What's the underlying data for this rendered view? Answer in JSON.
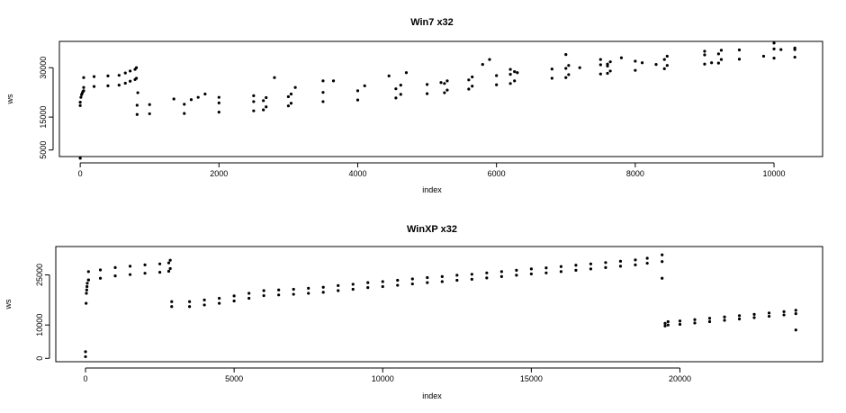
{
  "chart_data": [
    {
      "type": "scatter",
      "title": "Win7 x32",
      "xlabel": "index",
      "ylabel": "ws",
      "xlim": [
        -300,
        10700
      ],
      "ylim": [
        3000,
        38000
      ],
      "xticks": [
        0,
        2000,
        4000,
        6000,
        8000,
        10000
      ],
      "yticks": [
        5000,
        15000,
        30000
      ],
      "series": [
        {
          "points": [
            [
              0,
              2500
            ],
            [
              0,
              18500
            ],
            [
              0,
              19500
            ],
            [
              10,
              21000
            ],
            [
              20,
              21800
            ],
            [
              30,
              22300
            ],
            [
              40,
              22800
            ],
            [
              50,
              23000
            ],
            [
              50,
              27000
            ],
            [
              200,
              27300
            ],
            [
              400,
              27500
            ],
            [
              560,
              27700
            ],
            [
              650,
              28400
            ],
            [
              720,
              29000
            ],
            [
              790,
              29500
            ],
            [
              810,
              30000
            ],
            [
              50,
              24000
            ],
            [
              200,
              24300
            ],
            [
              400,
              24500
            ],
            [
              560,
              24700
            ],
            [
              650,
              25300
            ],
            [
              720,
              25900
            ],
            [
              790,
              26400
            ],
            [
              810,
              26800
            ],
            [
              830,
              22400
            ],
            [
              820,
              18600
            ],
            [
              1000,
              18800
            ],
            [
              1500,
              18900
            ],
            [
              2000,
              19300
            ],
            [
              2500,
              19700
            ],
            [
              2640,
              20000
            ],
            [
              2680,
              20900
            ],
            [
              3000,
              21200
            ],
            [
              3040,
              22000
            ],
            [
              3500,
              22500
            ],
            [
              4000,
              23000
            ],
            [
              4550,
              23600
            ],
            [
              4620,
              24700
            ],
            [
              5000,
              24900
            ],
            [
              5250,
              25200
            ],
            [
              5290,
              26000
            ],
            [
              5600,
              26300
            ],
            [
              5650,
              27200
            ],
            [
              6000,
              27600
            ],
            [
              6200,
              28000
            ],
            [
              6260,
              28800
            ],
            [
              6800,
              29600
            ],
            [
              7000,
              29800
            ],
            [
              7040,
              30700
            ],
            [
              7500,
              30900
            ],
            [
              7600,
              31100
            ],
            [
              7640,
              31800
            ],
            [
              8000,
              32000
            ],
            [
              8420,
              32500
            ],
            [
              8460,
              33500
            ],
            [
              9000,
              33900
            ],
            [
              9200,
              34200
            ],
            [
              9240,
              35300
            ],
            [
              9500,
              35400
            ],
            [
              10000,
              35700
            ],
            [
              10300,
              36000
            ],
            [
              820,
              15800
            ],
            [
              1000,
              16000
            ],
            [
              1500,
              16100
            ],
            [
              2000,
              16500
            ],
            [
              2500,
              16900
            ],
            [
              2640,
              17200
            ],
            [
              2680,
              18100
            ],
            [
              3000,
              18400
            ],
            [
              3040,
              19200
            ],
            [
              3500,
              19700
            ],
            [
              4000,
              20200
            ],
            [
              4550,
              20800
            ],
            [
              4620,
              21900
            ],
            [
              5000,
              22100
            ],
            [
              5250,
              22400
            ],
            [
              5290,
              23200
            ],
            [
              5600,
              23500
            ],
            [
              5650,
              24400
            ],
            [
              6000,
              24800
            ],
            [
              6200,
              25200
            ],
            [
              6260,
              26000
            ],
            [
              6800,
              26800
            ],
            [
              7000,
              27000
            ],
            [
              7040,
              27900
            ],
            [
              7500,
              28100
            ],
            [
              7600,
              28300
            ],
            [
              7640,
              29000
            ],
            [
              8000,
              29200
            ],
            [
              8420,
              29700
            ],
            [
              8460,
              30700
            ],
            [
              9000,
              31100
            ],
            [
              9200,
              31400
            ],
            [
              9240,
              32500
            ],
            [
              9500,
              32600
            ],
            [
              10000,
              32900
            ],
            [
              10300,
              33200
            ],
            [
              1350,
              20500
            ],
            [
              1600,
              20300
            ],
            [
              1700,
              21000
            ],
            [
              1800,
              22000
            ],
            [
              2000,
              21000
            ],
            [
              2500,
              21500
            ],
            [
              2800,
              27000
            ],
            [
              3100,
              24000
            ],
            [
              3500,
              26000
            ],
            [
              3650,
              26000
            ],
            [
              4100,
              24500
            ],
            [
              4450,
              27500
            ],
            [
              4700,
              28500
            ],
            [
              5200,
              25500
            ],
            [
              5800,
              31000
            ],
            [
              5900,
              32500
            ],
            [
              6200,
              29500
            ],
            [
              6300,
              28500
            ],
            [
              7000,
              34000
            ],
            [
              7200,
              30000
            ],
            [
              7500,
              32500
            ],
            [
              7600,
              30500
            ],
            [
              7800,
              33000
            ],
            [
              8100,
              31500
            ],
            [
              8300,
              31000
            ],
            [
              9000,
              35000
            ],
            [
              9100,
              31500
            ],
            [
              9850,
              33500
            ],
            [
              10000,
              37500
            ],
            [
              10100,
              35500
            ],
            [
              10300,
              35500
            ]
          ]
        }
      ]
    },
    {
      "type": "scatter",
      "title": "WinXP x32",
      "xlabel": "index",
      "ylabel": "ws",
      "xlim": [
        -1000,
        24800
      ],
      "ylim": [
        -1000,
        33500
      ],
      "xticks": [
        0,
        5000,
        10000,
        15000,
        20000
      ],
      "yticks": [
        0,
        10000,
        25000
      ],
      "series": [
        {
          "points": [
            [
              0,
              500
            ],
            [
              0,
              2000
            ],
            [
              20,
              16500
            ],
            [
              30,
              19500
            ],
            [
              40,
              20500
            ],
            [
              50,
              21500
            ],
            [
              60,
              22500
            ],
            [
              100,
              23500
            ],
            [
              100,
              26000
            ],
            [
              500,
              26500
            ],
            [
              1000,
              27200
            ],
            [
              1500,
              27600
            ],
            [
              2000,
              28000
            ],
            [
              2500,
              28300
            ],
            [
              2800,
              28600
            ],
            [
              2850,
              29400
            ],
            [
              100,
              23500
            ],
            [
              500,
              24000
            ],
            [
              1000,
              24700
            ],
            [
              1500,
              25100
            ],
            [
              2000,
              25500
            ],
            [
              2500,
              25800
            ],
            [
              2800,
              26100
            ],
            [
              2850,
              26900
            ],
            [
              2900,
              17000
            ],
            [
              3500,
              17000
            ],
            [
              4000,
              17500
            ],
            [
              4500,
              18000
            ],
            [
              5000,
              18700
            ],
            [
              5500,
              19500
            ],
            [
              6000,
              20300
            ],
            [
              6500,
              20500
            ],
            [
              7000,
              20700
            ],
            [
              7500,
              21000
            ],
            [
              8000,
              21300
            ],
            [
              8500,
              21800
            ],
            [
              9000,
              22200
            ],
            [
              9500,
              22700
            ],
            [
              10000,
              23000
            ],
            [
              10500,
              23400
            ],
            [
              11000,
              23800
            ],
            [
              11500,
              24200
            ],
            [
              12000,
              24500
            ],
            [
              12500,
              24900
            ],
            [
              13000,
              25200
            ],
            [
              13500,
              25600
            ],
            [
              14000,
              26000
            ],
            [
              14500,
              26400
            ],
            [
              15000,
              26800
            ],
            [
              15500,
              27100
            ],
            [
              16000,
              27500
            ],
            [
              16500,
              27900
            ],
            [
              17000,
              28300
            ],
            [
              17500,
              28700
            ],
            [
              18000,
              29100
            ],
            [
              18500,
              29500
            ],
            [
              18900,
              30000
            ],
            [
              19400,
              31000
            ],
            [
              2900,
              15500
            ],
            [
              3500,
              15500
            ],
            [
              4000,
              16000
            ],
            [
              4500,
              16500
            ],
            [
              5000,
              17200
            ],
            [
              5500,
              18000
            ],
            [
              6000,
              18800
            ],
            [
              6500,
              19000
            ],
            [
              7000,
              19200
            ],
            [
              7500,
              19500
            ],
            [
              8000,
              19800
            ],
            [
              8500,
              20300
            ],
            [
              9000,
              20700
            ],
            [
              9500,
              21200
            ],
            [
              10000,
              21500
            ],
            [
              10500,
              21900
            ],
            [
              11000,
              22300
            ],
            [
              11500,
              22700
            ],
            [
              12000,
              23000
            ],
            [
              12500,
              23400
            ],
            [
              13000,
              23700
            ],
            [
              13500,
              24100
            ],
            [
              14000,
              24500
            ],
            [
              14500,
              24900
            ],
            [
              15000,
              25300
            ],
            [
              15500,
              25600
            ],
            [
              16000,
              26000
            ],
            [
              16500,
              26400
            ],
            [
              17000,
              26800
            ],
            [
              17500,
              27200
            ],
            [
              18000,
              27600
            ],
            [
              18500,
              28000
            ],
            [
              18900,
              28500
            ],
            [
              19400,
              29000
            ],
            [
              19400,
              24000
            ],
            [
              19500,
              10500
            ],
            [
              19600,
              11000
            ],
            [
              20000,
              11200
            ],
            [
              20500,
              11600
            ],
            [
              21000,
              12000
            ],
            [
              21500,
              12400
            ],
            [
              22000,
              12800
            ],
            [
              22500,
              13200
            ],
            [
              23000,
              13600
            ],
            [
              23500,
              14000
            ],
            [
              23900,
              14400
            ],
            [
              19500,
              9700
            ],
            [
              19600,
              10000
            ],
            [
              20000,
              10200
            ],
            [
              20500,
              10600
            ],
            [
              21000,
              11000
            ],
            [
              21500,
              11400
            ],
            [
              22000,
              11800
            ],
            [
              22500,
              12200
            ],
            [
              23000,
              12600
            ],
            [
              23500,
              13000
            ],
            [
              23900,
              13400
            ],
            [
              23900,
              8500
            ]
          ]
        }
      ]
    }
  ]
}
